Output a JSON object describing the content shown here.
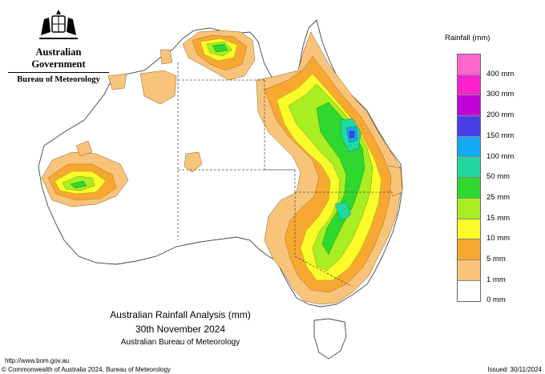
{
  "header": {
    "government": "Australian Government",
    "bureau": "Bureau of Meteorology"
  },
  "legend": {
    "title": "Rainfall (mm)",
    "items": [
      {
        "label": "",
        "color": "#ff66cc"
      },
      {
        "label": "400 mm",
        "color": "#ff22cc"
      },
      {
        "label": "300 mm",
        "color": "#c000d8"
      },
      {
        "label": "200 mm",
        "color": "#4a40e8"
      },
      {
        "label": "150 mm",
        "color": "#14a8f5"
      },
      {
        "label": "100 mm",
        "color": "#22d8a0"
      },
      {
        "label": "50 mm",
        "color": "#2ed82e"
      },
      {
        "label": "25 mm",
        "color": "#a8ee22"
      },
      {
        "label": "15 mm",
        "color": "#fbfb2a"
      },
      {
        "label": "10 mm",
        "color": "#f8a830"
      },
      {
        "label": "5 mm",
        "color": "#f8c47a"
      },
      {
        "label": "1 mm",
        "color": "#ffffff"
      },
      {
        "label": "0 mm",
        "color": ""
      }
    ]
  },
  "title": {
    "line1": "Australian Rainfall Analysis (mm)",
    "line2": "30th November 2024",
    "line3": "Australian Bureau of Meteorology"
  },
  "footer": {
    "url": "http://www.bom.gov.au",
    "copyright": "© Commonwealth of Australia 2024, Bureau of Meteorology",
    "issued": "Issued: 30/11/2024"
  }
}
